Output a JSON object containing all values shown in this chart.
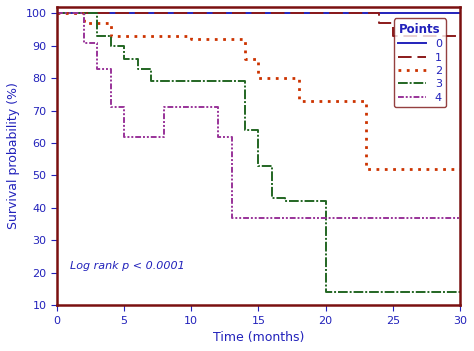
{
  "xlabel": "Time (months)",
  "ylabel": "Survival probability (%)",
  "xlim": [
    0,
    30
  ],
  "ylim": [
    10,
    102
  ],
  "xticks": [
    0,
    5,
    10,
    15,
    20,
    25,
    30
  ],
  "yticks": [
    10,
    20,
    30,
    40,
    50,
    60,
    70,
    80,
    90,
    100
  ],
  "annotation": "Log rank p < 0.0001",
  "legend_title": "Points",
  "curves": {
    "0": {
      "x": [
        0,
        30
      ],
      "y": [
        100,
        100
      ],
      "color": "#2222bb",
      "linestyle": "solid",
      "linewidth": 1.4
    },
    "1": {
      "x": [
        0,
        24,
        24,
        25,
        25,
        30
      ],
      "y": [
        100,
        100,
        97,
        97,
        93,
        93
      ],
      "color": "#8b1a1a",
      "linestyle": "dashed",
      "linewidth": 1.4
    },
    "2": {
      "x": [
        0,
        2,
        2,
        4,
        4,
        10,
        10,
        14,
        14,
        15,
        15,
        18,
        18,
        23,
        23,
        30
      ],
      "y": [
        100,
        100,
        97,
        97,
        93,
        93,
        92,
        92,
        86,
        86,
        80,
        80,
        73,
        73,
        52,
        52
      ],
      "color": "#cc3300",
      "linestyle": "dotted",
      "linewidth": 2.0
    },
    "3": {
      "x": [
        0,
        3,
        3,
        4,
        4,
        5,
        5,
        6,
        6,
        7,
        7,
        10,
        10,
        14,
        14,
        15,
        15,
        16,
        16,
        17,
        17,
        20,
        20,
        30
      ],
      "y": [
        100,
        100,
        93,
        93,
        90,
        90,
        86,
        86,
        83,
        83,
        79,
        79,
        79,
        79,
        64,
        64,
        53,
        53,
        43,
        43,
        42,
        42,
        14,
        14
      ],
      "color": "#226622",
      "linestyle": "dashdot",
      "linewidth": 1.4,
      "dash_pattern": [
        6,
        1,
        1,
        1
      ]
    },
    "4": {
      "x": [
        0,
        2,
        2,
        3,
        3,
        4,
        4,
        5,
        5,
        8,
        8,
        12,
        12,
        13,
        13,
        17,
        17,
        30
      ],
      "y": [
        100,
        100,
        91,
        91,
        83,
        83,
        71,
        71,
        62,
        62,
        71,
        71,
        62,
        62,
        37,
        37,
        37,
        37
      ],
      "color": "#993399",
      "linestyle": "dashdot",
      "linewidth": 1.4,
      "dash_pattern": [
        3,
        1,
        1,
        1,
        1,
        1
      ]
    }
  },
  "border_color": "#7a1010",
  "label_color": "#2222bb",
  "tick_color": "#2222bb",
  "background_color": "#ffffff"
}
